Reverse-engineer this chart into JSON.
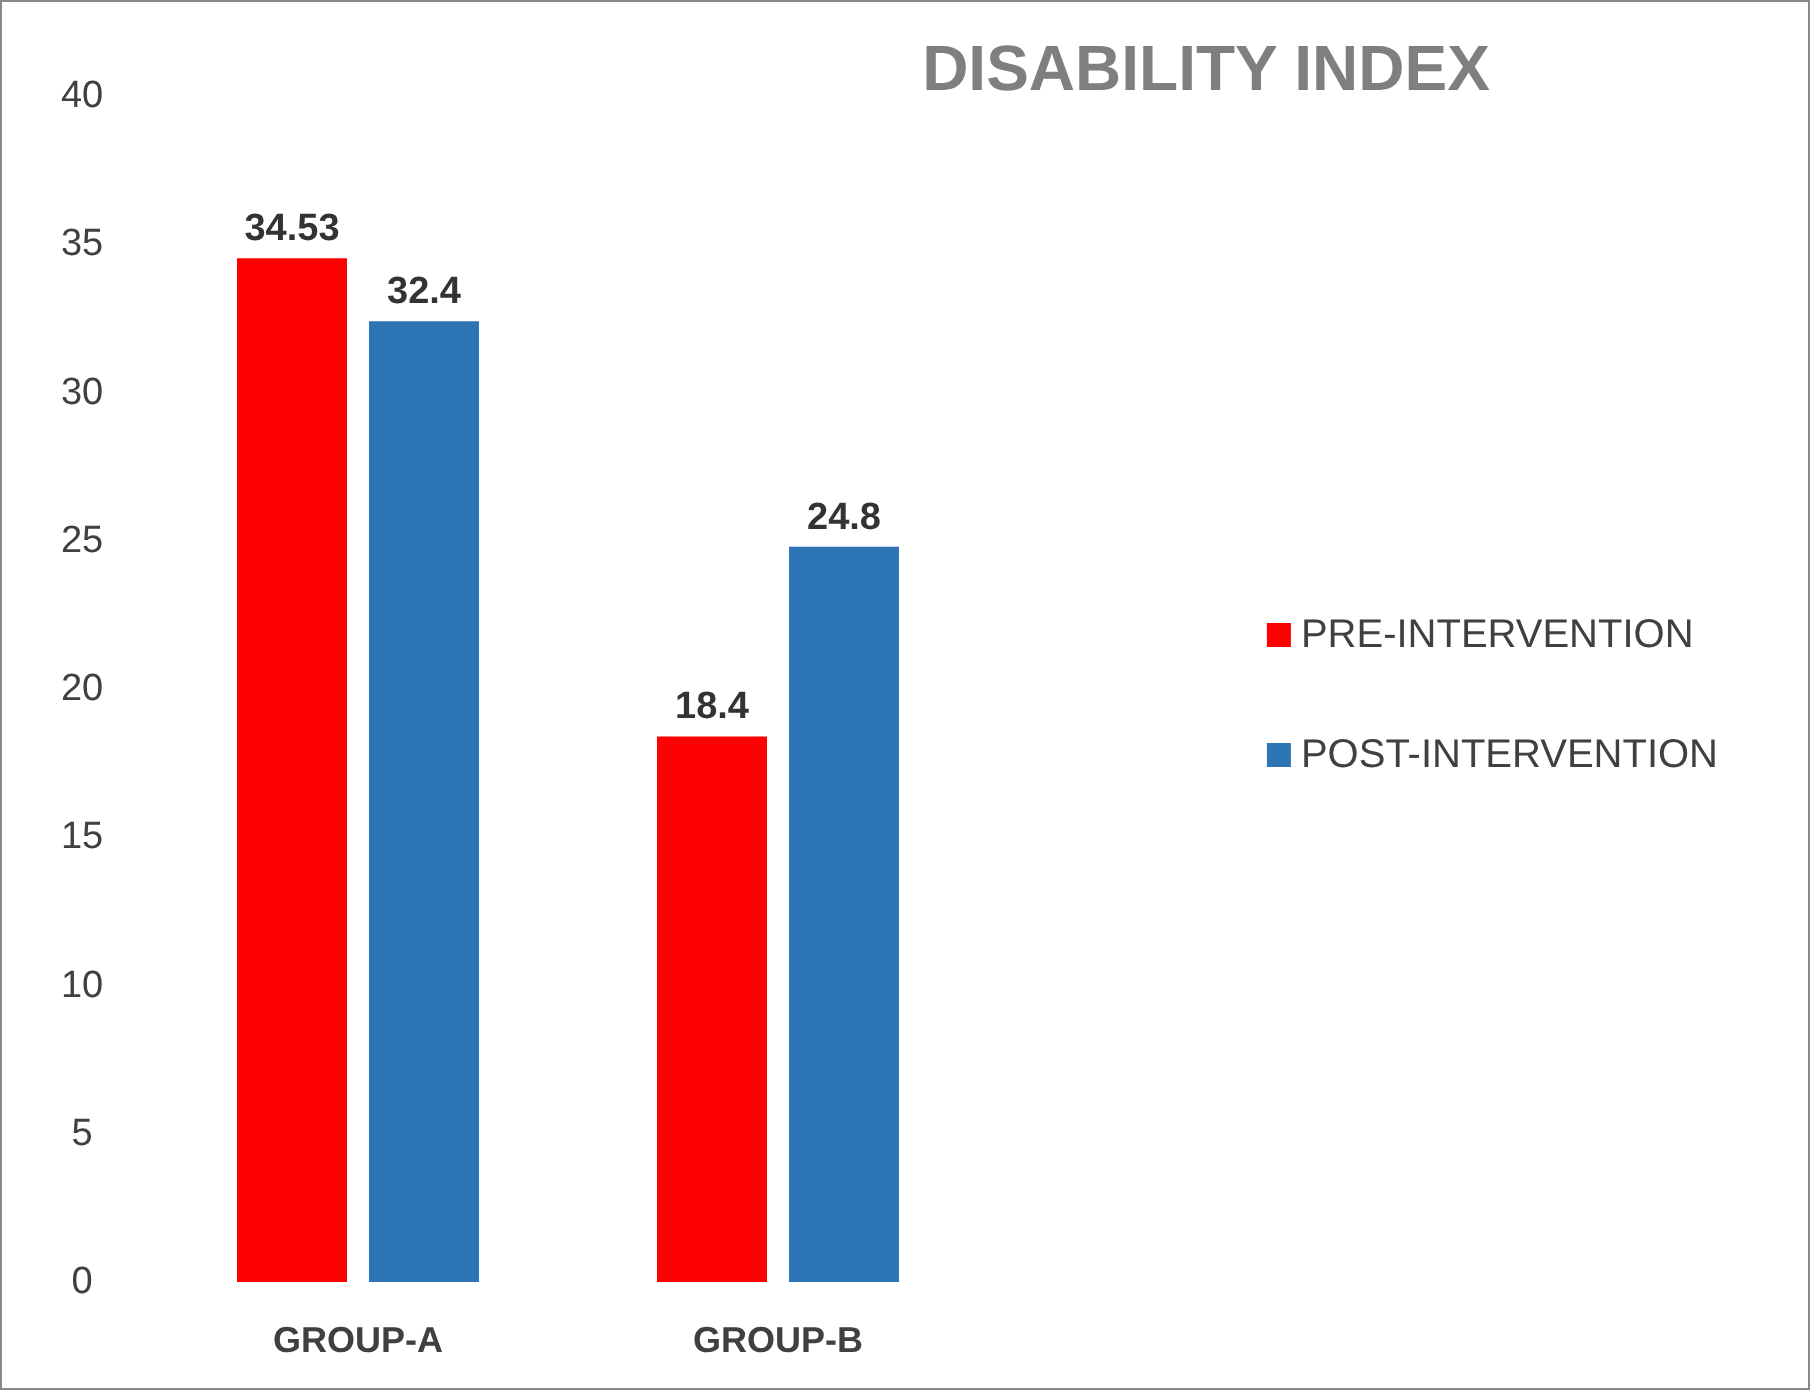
{
  "chart_data": {
    "type": "bar",
    "title": "DISABILITY INDEX",
    "categories": [
      "GROUP-A",
      "GROUP-B"
    ],
    "series": [
      {
        "name": "PRE-INTERVENTION",
        "color": "#ff0000",
        "values": [
          34.53,
          18.4
        ]
      },
      {
        "name": "POST-INTERVENTION",
        "color": "#2e75b6",
        "values": [
          32.4,
          24.8
        ]
      }
    ],
    "ylim": [
      0,
      40
    ],
    "yticks": [
      0,
      5,
      10,
      15,
      20,
      25,
      30,
      35,
      40
    ],
    "grid": false,
    "legend": "right",
    "data_labels": true
  }
}
